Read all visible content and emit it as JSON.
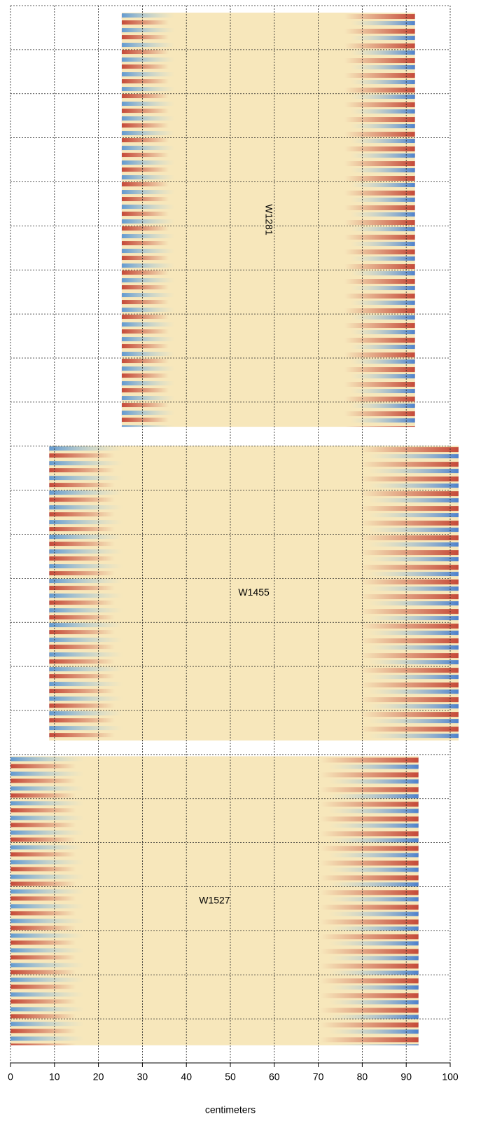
{
  "chart_data": {
    "type": "heatmap",
    "xlabel": "centimeters",
    "xlim": [
      0,
      100
    ],
    "xticks": [
      0,
      10,
      20,
      30,
      40,
      50,
      60,
      70,
      80,
      90,
      100
    ],
    "ylim": [
      0,
      240
    ],
    "yticks": [
      0,
      10,
      20,
      30,
      40,
      50,
      60,
      70,
      80,
      90,
      100,
      110,
      120,
      130,
      140,
      150,
      160,
      170,
      180,
      190,
      200,
      210,
      220,
      230,
      240
    ],
    "grid": true,
    "panels": [
      {
        "name": "W1281",
        "x": [
          25.3,
          92.0
        ],
        "y": [
          144.4,
          238.4
        ],
        "label_rotation": 90
      },
      {
        "name": "W1455",
        "x": [
          8.8,
          101.9
        ],
        "y": [
          73.2,
          140.1
        ],
        "label_rotation": 0
      },
      {
        "name": "W1527",
        "x": [
          0,
          92.8
        ],
        "y": [
          4.0,
          69.6
        ],
        "label_rotation": 0
      }
    ]
  }
}
